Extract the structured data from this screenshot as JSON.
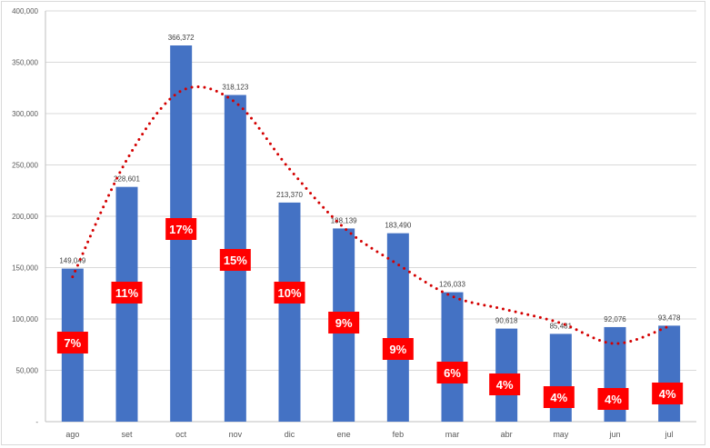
{
  "chart_data": {
    "type": "bar",
    "title": "",
    "xlabel": "",
    "ylabel": "",
    "ylim": [
      0,
      400000
    ],
    "yticks": [
      0,
      50000,
      100000,
      150000,
      200000,
      250000,
      300000,
      350000,
      400000
    ],
    "ytick_labels": [
      "-",
      "50,000",
      "100,000",
      "150,000",
      "200,000",
      "250,000",
      "300,000",
      "350,000",
      "400,000"
    ],
    "grid": true,
    "categories": [
      "ago",
      "set",
      "oct",
      "nov",
      "dic",
      "ene",
      "feb",
      "mar",
      "abr",
      "may",
      "jun",
      "jul"
    ],
    "values": [
      149049,
      228601,
      366372,
      318123,
      213370,
      188139,
      183490,
      126033,
      90618,
      85481,
      92076,
      93478
    ],
    "value_labels": [
      "149,049",
      "228,601",
      "366,372",
      "318,123",
      "213,370",
      "188,139",
      "183,490",
      "126,033",
      "90,618",
      "85,481",
      "92,076",
      "93,478"
    ],
    "percent_labels": [
      "7%",
      "11%",
      "17%",
      "15%",
      "10%",
      "9%",
      "9%",
      "6%",
      "4%",
      "4%",
      "4%",
      "4%"
    ],
    "trendline": {
      "type": "polynomial",
      "style": "dotted",
      "values": [
        141000,
        255000,
        322000,
        311000,
        246000,
        189000,
        153000,
        122000,
        109000,
        96000,
        76000,
        93000
      ]
    },
    "colors": {
      "bar": "#4472c4",
      "trend": "#d40000",
      "label_box": "#ff0000",
      "grid": "#d9d9d9"
    }
  }
}
